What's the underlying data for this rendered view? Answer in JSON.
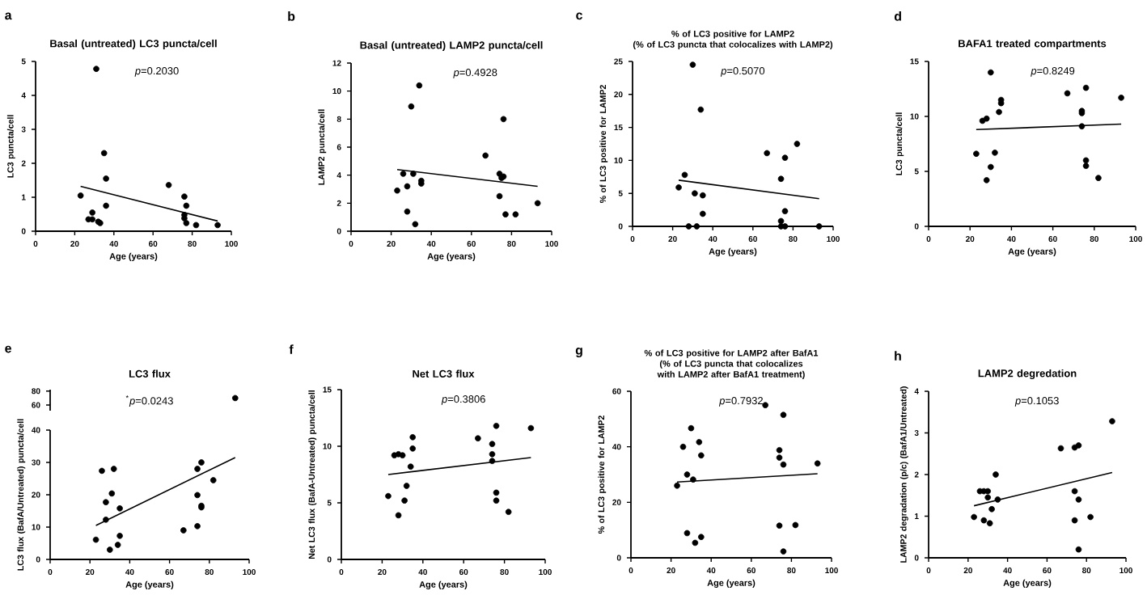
{
  "chart_data": [
    {
      "type": "scatter",
      "title": "Basal (untreated) LC3 puncta/cell",
      "xlabel": "Age (years)",
      "ylabel": "LC3 puncta/cell",
      "annotations": [
        "a",
        "*p*=0.2030"
      ],
      "xlim": [
        0,
        100
      ],
      "xticks": [
        0,
        20,
        40,
        60,
        80,
        100
      ],
      "ylim": [
        0,
        5
      ],
      "yticks": [
        0,
        1,
        2,
        3,
        4,
        5
      ],
      "series": [
        {
          "marker": "circle",
          "color": "#000000",
          "x": [
            23,
            31,
            35,
            36,
            36,
            27,
            29,
            29,
            32,
            33,
            68,
            76,
            77,
            76,
            76,
            77,
            82,
            93
          ],
          "values": [
            1.05,
            4.78,
            2.3,
            1.55,
            0.75,
            0.35,
            0.35,
            0.55,
            0.28,
            0.24,
            1.36,
            1.02,
            0.75,
            0.48,
            0.38,
            0.24,
            0.18,
            0.18
          ]
        },
        {
          "type": "line",
          "marker": "none",
          "color": "#000000",
          "x": [
            23,
            93
          ],
          "values": [
            1.32,
            0.3
          ]
        }
      ]
    },
    {
      "type": "scatter",
      "title": "Basal (untreated) LAMP2 puncta/cell",
      "xlabel": "Age (years)",
      "ylabel": "LAMP2 puncta/cell",
      "annotations": [
        "b",
        "*p*=0.4928"
      ],
      "xlim": [
        0,
        100
      ],
      "xticks": [
        0,
        20,
        40,
        60,
        80,
        100
      ],
      "ylim": [
        0,
        12
      ],
      "yticks": [
        0,
        2,
        4,
        6,
        8,
        10,
        12
      ],
      "series": [
        {
          "marker": "circle",
          "color": "#000000",
          "x": [
            23,
            26,
            28,
            28,
            30,
            31,
            32,
            34,
            35,
            35,
            67,
            74,
            74,
            76,
            76,
            75,
            77,
            82,
            93
          ],
          "values": [
            2.9,
            4.1,
            3.2,
            1.4,
            8.9,
            4.1,
            0.5,
            10.4,
            3.6,
            3.4,
            5.4,
            4.1,
            2.5,
            8.0,
            3.9,
            3.8,
            1.2,
            1.2,
            2.0
          ]
        },
        {
          "type": "line",
          "marker": "none",
          "color": "#000000",
          "x": [
            23,
            93
          ],
          "values": [
            4.4,
            3.2
          ]
        }
      ]
    },
    {
      "type": "scatter",
      "title": "% of LC3 positive for LAMP2",
      "subtitle": "(% of  LC3 puncta that colocalizes with LAMP2)",
      "xlabel": "Age (years)",
      "ylabel": "% of LC3 positive for LAMP2",
      "annotations": [
        "c",
        "*p*=0.5070"
      ],
      "xlim": [
        0,
        100
      ],
      "xticks": [
        0,
        20,
        40,
        60,
        80,
        100
      ],
      "ylim": [
        0,
        25
      ],
      "yticks": [
        0,
        5,
        10,
        15,
        20,
        25
      ],
      "series": [
        {
          "marker": "circle",
          "color": "#000000",
          "x": [
            23,
            26,
            28,
            30,
            31,
            32,
            34,
            35,
            35,
            67,
            74,
            74,
            74,
            76,
            76,
            76,
            82,
            93
          ],
          "values": [
            5.9,
            7.8,
            0,
            24.5,
            5.0,
            0,
            17.7,
            4.7,
            1.9,
            11.1,
            7.2,
            0.8,
            0,
            10.4,
            2.3,
            0,
            12.5,
            0
          ]
        },
        {
          "type": "line",
          "marker": "none",
          "color": "#000000",
          "x": [
            23,
            93
          ],
          "values": [
            7.0,
            4.2
          ]
        }
      ]
    },
    {
      "type": "scatter",
      "title": "BAFA1 treated compartments",
      "xlabel": "Age (years)",
      "ylabel": "LC3 puncta/cell",
      "annotations": [
        "d",
        "*p*=0.8249"
      ],
      "xlim": [
        0,
        100
      ],
      "xticks": [
        0,
        20,
        40,
        60,
        80,
        100
      ],
      "ylim": [
        0,
        15
      ],
      "yticks": [
        0,
        5,
        10,
        15
      ],
      "series": [
        {
          "marker": "circle",
          "color": "#000000",
          "x": [
            23,
            26,
            28,
            28,
            30,
            30,
            32,
            34,
            35,
            35,
            67,
            74,
            74,
            74,
            76,
            76,
            76,
            82,
            93
          ],
          "values": [
            6.6,
            9.6,
            9.8,
            4.2,
            5.4,
            14.0,
            6.7,
            10.4,
            11.5,
            11.2,
            12.1,
            10.5,
            10.3,
            9.1,
            12.6,
            6.0,
            5.5,
            4.4,
            11.7
          ]
        },
        {
          "type": "line",
          "marker": "none",
          "color": "#000000",
          "x": [
            23,
            93
          ],
          "values": [
            8.8,
            9.3
          ]
        }
      ]
    },
    {
      "type": "scatter",
      "title": "LC3 flux",
      "annotations": [
        "e",
        "$^{*}$*p*=0.0243"
      ],
      "tick_labels": "y",
      "xlim": [
        0,
        100
      ],
      "ylim": [
        52,
        82
      ],
      "yticks": [
        60,
        80
      ],
      "series": [
        {
          "marker": "circle",
          "color": "#000000",
          "x": [
            93
          ],
          "values": [
            70
          ]
        }
      ]
    },
    {
      "type": "scatter",
      "xlabel": "Age (years)",
      "ylabel": "LC3 flux (BafA/Untreated) puncta/cell",
      "xlim": [
        0,
        100
      ],
      "xticks": [
        0,
        20,
        40,
        60,
        80,
        100
      ],
      "ylim": [
        0,
        40
      ],
      "yticks": [
        0,
        10,
        20,
        30,
        40
      ],
      "series": [
        {
          "marker": "circle",
          "color": "#000000",
          "x": [
            23,
            26,
            28,
            28,
            30,
            31,
            32,
            34,
            35,
            35,
            67,
            74,
            74,
            74,
            76,
            76,
            76,
            82
          ],
          "values": [
            6.1,
            27.4,
            17.7,
            12.3,
            3.0,
            20.4,
            28.0,
            4.5,
            7.3,
            15.8,
            9.0,
            10.3,
            19.9,
            28.0,
            30.0,
            16.6,
            16.1,
            24.5
          ]
        },
        {
          "type": "line",
          "marker": "none",
          "color": "#000000",
          "x": [
            23,
            93
          ],
          "values": [
            10.5,
            31.5
          ]
        }
      ]
    },
    {
      "type": "scatter",
      "title": "Net LC3 flux",
      "xlabel": "Age (years)",
      "ylabel": "Net LC3 flux (BafA-Untreated) puncta/cell",
      "annotations": [
        "f",
        "*p*=0.3806"
      ],
      "xlim": [
        0,
        100
      ],
      "xticks": [
        0,
        20,
        40,
        60,
        80,
        100
      ],
      "ylim": [
        0,
        15
      ],
      "yticks": [
        0,
        5,
        10,
        15
      ],
      "series": [
        {
          "marker": "circle",
          "color": "#000000",
          "x": [
            23,
            26,
            28,
            28,
            30,
            31,
            32,
            34,
            35,
            35,
            67,
            74,
            74,
            74,
            76,
            76,
            76,
            82,
            93
          ],
          "values": [
            5.6,
            9.2,
            9.3,
            3.9,
            9.2,
            5.2,
            6.5,
            8.2,
            9.8,
            10.8,
            10.7,
            10.2,
            9.3,
            8.7,
            11.8,
            5.9,
            5.2,
            4.2,
            11.6
          ]
        },
        {
          "type": "line",
          "marker": "none",
          "color": "#000000",
          "x": [
            23,
            93
          ],
          "values": [
            7.5,
            9.0
          ]
        }
      ]
    },
    {
      "type": "scatter",
      "title": "% of LC3 positive for LAMP2 after BafA1",
      "subtitle": "(% of  LC3 puncta that colocalizes with LAMP2 after BafA1 treatment)",
      "xlabel": "Age (years)",
      "ylabel": "% of LC3 positive for LAMP2",
      "annotations": [
        "g",
        "*p*=0.7932"
      ],
      "xlim": [
        0,
        100
      ],
      "xticks": [
        0,
        20,
        40,
        60,
        80,
        100
      ],
      "ylim": [
        0,
        60
      ],
      "yticks": [
        0,
        20,
        40,
        60
      ],
      "series": [
        {
          "marker": "circle",
          "color": "#000000",
          "x": [
            23,
            26,
            28,
            28,
            30,
            31,
            32,
            34,
            35,
            35,
            67,
            74,
            74,
            74,
            76,
            76,
            76,
            82,
            93
          ],
          "values": [
            26,
            40,
            30,
            8.9,
            46.7,
            28.2,
            5.4,
            41.7,
            36.9,
            7.5,
            55,
            38.8,
            36.1,
            11.6,
            51.5,
            33.6,
            2.3,
            11.8,
            34
          ]
        },
        {
          "type": "line",
          "marker": "none",
          "color": "#000000",
          "x": [
            23,
            93
          ],
          "values": [
            27.3,
            30.3
          ]
        }
      ]
    },
    {
      "type": "scatter",
      "title": "LAMP2 degredation",
      "xlabel": "Age (years)",
      "ylabel": "LAMP2 degradation (p/c) (BafA1/Untreated)",
      "annotations": [
        "h",
        "*p*=0.1053"
      ],
      "xlim": [
        0,
        100
      ],
      "xticks": [
        0,
        20,
        40,
        60,
        80,
        100
      ],
      "ylim": [
        0,
        4
      ],
      "yticks": [
        0,
        1,
        2,
        3,
        4
      ],
      "series": [
        {
          "marker": "circle",
          "color": "#000000",
          "x": [
            23,
            26,
            28,
            28,
            30,
            30,
            31,
            32,
            34,
            35,
            67,
            74,
            76,
            74,
            76,
            74,
            76,
            82,
            93
          ],
          "values": [
            0.98,
            1.6,
            1.6,
            0.9,
            1.6,
            1.45,
            0.83,
            1.17,
            2.0,
            1.4,
            2.63,
            2.65,
            2.7,
            1.6,
            1.4,
            0.9,
            0.2,
            0.98,
            3.28
          ]
        },
        {
          "type": "line",
          "marker": "none",
          "color": "#000000",
          "x": [
            23,
            93
          ],
          "values": [
            1.25,
            2.05
          ]
        }
      ]
    }
  ]
}
